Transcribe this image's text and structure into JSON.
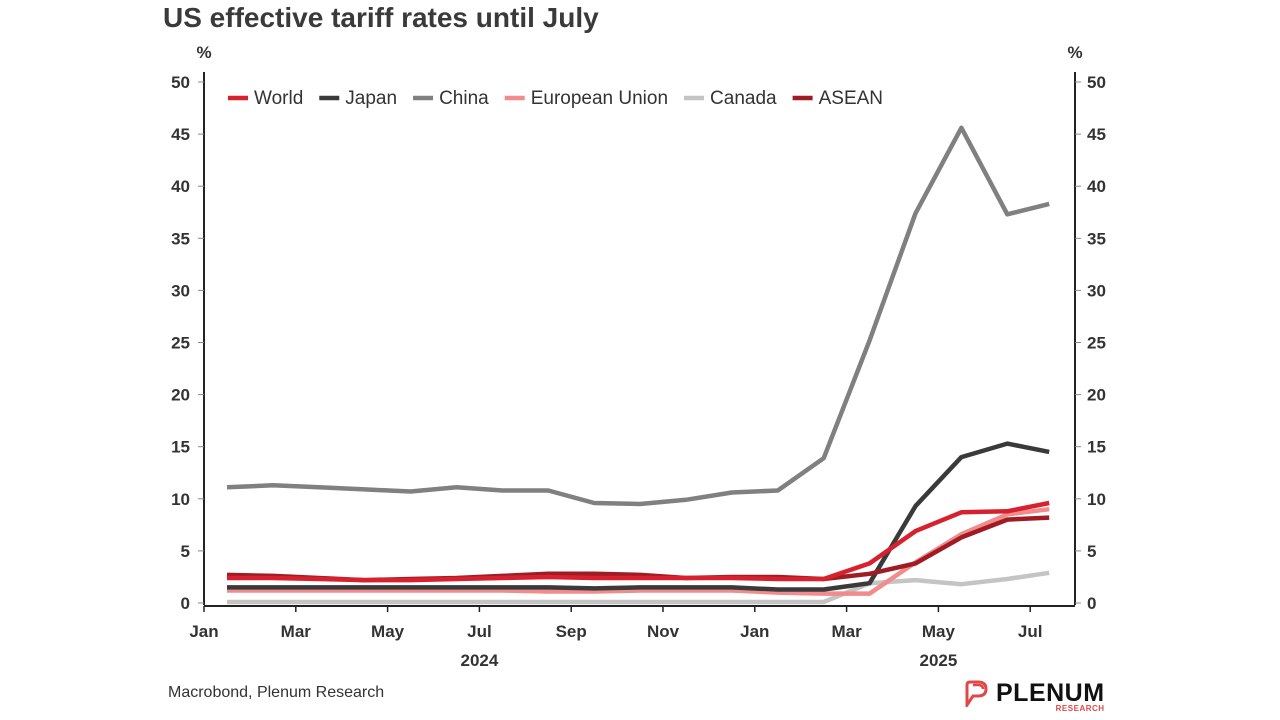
{
  "title": "US effective tariff rates until July",
  "source": "Macrobond, Plenum Research",
  "logo": {
    "name": "PLENUM",
    "sub": "RESEARCH"
  },
  "chart_data": {
    "type": "line",
    "title": "US effective tariff rates until July",
    "ylabel_left": "%",
    "ylabel_right": "%",
    "ylim": [
      0,
      50
    ],
    "yticks": [
      0,
      5,
      10,
      15,
      20,
      25,
      30,
      35,
      40,
      45,
      50
    ],
    "xticks": [
      {
        "label": "Jan",
        "m": 0
      },
      {
        "label": "Mar",
        "m": 2
      },
      {
        "label": "May",
        "m": 4
      },
      {
        "label": "Jul",
        "m": 6
      },
      {
        "label": "Sep",
        "m": 8
      },
      {
        "label": "Nov",
        "m": 10
      },
      {
        "label": "Jan",
        "m": 12
      },
      {
        "label": "Mar",
        "m": 14
      },
      {
        "label": "May",
        "m": 16
      },
      {
        "label": "Jul",
        "m": 18
      }
    ],
    "year_labels": [
      {
        "label": "2024",
        "m": 6
      },
      {
        "label": "2025",
        "m": 16
      }
    ],
    "x": [
      "2024-01",
      "2024-02",
      "2024-03",
      "2024-04",
      "2024-05",
      "2024-06",
      "2024-07",
      "2024-08",
      "2024-09",
      "2024-10",
      "2024-11",
      "2024-12",
      "2025-01",
      "2025-02",
      "2025-03",
      "2025-04",
      "2025-05",
      "2025-06",
      "2025-07"
    ],
    "series": [
      {
        "name": "World",
        "color": "#d8212f",
        "values": [
          2.4,
          2.4,
          2.3,
          2.2,
          2.2,
          2.3,
          2.4,
          2.5,
          2.4,
          2.4,
          2.4,
          2.4,
          2.3,
          2.3,
          3.8,
          6.9,
          8.7,
          8.8,
          9.6
        ]
      },
      {
        "name": "Japan",
        "color": "#3a3a3a",
        "values": [
          1.5,
          1.5,
          1.5,
          1.5,
          1.5,
          1.5,
          1.5,
          1.5,
          1.4,
          1.5,
          1.5,
          1.5,
          1.3,
          1.3,
          1.9,
          9.3,
          14.0,
          15.3,
          14.5
        ]
      },
      {
        "name": "China",
        "color": "#808080",
        "values": [
          11.1,
          11.3,
          11.1,
          10.9,
          10.7,
          11.1,
          10.8,
          10.8,
          9.6,
          9.5,
          9.9,
          10.6,
          10.8,
          13.9,
          25.2,
          37.4,
          45.6,
          37.3,
          38.3
        ]
      },
      {
        "name": "European Union",
        "color": "#f28b8b",
        "values": [
          1.2,
          1.2,
          1.2,
          1.2,
          1.2,
          1.2,
          1.2,
          1.1,
          1.1,
          1.2,
          1.2,
          1.2,
          1.0,
          0.9,
          0.9,
          3.9,
          6.6,
          8.5,
          9.0
        ]
      },
      {
        "name": "Canada",
        "color": "#c4c4c4",
        "values": [
          0.1,
          0.1,
          0.1,
          0.1,
          0.1,
          0.1,
          0.1,
          0.1,
          0.1,
          0.1,
          0.1,
          0.1,
          0.1,
          0.1,
          1.9,
          2.2,
          1.8,
          2.3,
          2.9
        ]
      },
      {
        "name": "ASEAN",
        "color": "#a01c24",
        "values": [
          2.7,
          2.6,
          2.4,
          2.2,
          2.3,
          2.4,
          2.6,
          2.8,
          2.8,
          2.7,
          2.4,
          2.5,
          2.5,
          2.3,
          2.8,
          3.8,
          6.3,
          8.0,
          8.2
        ]
      }
    ],
    "legend_position": "top-left",
    "grid": false
  }
}
